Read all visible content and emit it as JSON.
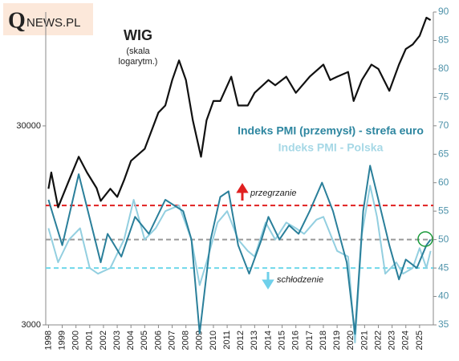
{
  "logo": {
    "mark": "Q",
    "rest": "NEWS.PL"
  },
  "chart_data": {
    "type": "line",
    "wig_note": [
      "(skala",
      "logarytm.)"
    ],
    "xlim": [
      1997.8,
      2026
    ],
    "xticks": [
      1998,
      1999,
      2000,
      2001,
      2002,
      2003,
      2004,
      2005,
      2006,
      2007,
      2008,
      2009,
      2010,
      2011,
      2012,
      2013,
      2014,
      2015,
      2016,
      2017,
      2018,
      2019,
      2020,
      2021,
      2022,
      2023,
      2024,
      2025
    ],
    "ylim": [
      3000,
      112000
    ],
    "yticks": [
      3000,
      30000
    ],
    "ylog": true,
    "y2lim": [
      35,
      90
    ],
    "y2ticks": [
      35,
      40,
      45,
      50,
      55,
      60,
      65,
      70,
      75,
      80,
      85,
      90
    ],
    "series": [
      {
        "name": "WIG",
        "color": "#111111",
        "axis": "y",
        "x": [
          1998.0,
          1998.2,
          1998.7,
          1999.5,
          2000.2,
          2000.8,
          2001.5,
          2001.8,
          2002.5,
          2003.0,
          2003.5,
          2004.0,
          2005.0,
          2006.0,
          2006.5,
          2007.0,
          2007.5,
          2008.0,
          2008.5,
          2009.1,
          2009.5,
          2010.0,
          2010.5,
          2011.3,
          2011.8,
          2012.5,
          2013.0,
          2014.0,
          2014.5,
          2015.3,
          2016.0,
          2017.0,
          2018.0,
          2018.5,
          2019.0,
          2019.8,
          2020.2,
          2020.8,
          2021.5,
          2022.0,
          2022.8,
          2023.5,
          2024.0,
          2024.5,
          2025.0,
          2025.5,
          2025.8
        ],
        "values": [
          14500,
          17500,
          11700,
          16000,
          21000,
          17500,
          14600,
          12600,
          14500,
          13200,
          16000,
          20000,
          23000,
          35000,
          38000,
          51000,
          64000,
          51000,
          32000,
          21000,
          32000,
          40000,
          40000,
          53000,
          38000,
          38000,
          44000,
          51000,
          48000,
          53000,
          44000,
          53000,
          61000,
          51000,
          53000,
          56000,
          40000,
          51000,
          61000,
          58000,
          45000,
          61000,
          73000,
          77000,
          85000,
          105000,
          102000
        ]
      },
      {
        "name": "Indeks PMI (przemysł) - strefa euro",
        "color": "#2a7f9a",
        "axis": "y2",
        "x": [
          1998.0,
          1999.0,
          2000.2,
          2001.8,
          2002.3,
          2003.3,
          2004.3,
          2005.3,
          2006.5,
          2007.8,
          2008.4,
          2009.0,
          2009.8,
          2010.5,
          2011.1,
          2011.8,
          2012.6,
          2013.5,
          2014.0,
          2014.8,
          2015.5,
          2016.2,
          2017.0,
          2017.9,
          2018.7,
          2019.7,
          2020.3,
          2020.9,
          2021.4,
          2021.9,
          2022.8,
          2023.5,
          2024.0,
          2024.8,
          2025.5,
          2025.8
        ],
        "values": [
          57,
          49,
          61.5,
          46,
          51,
          47,
          54,
          51,
          57,
          55,
          50,
          33.5,
          50,
          57.5,
          58.5,
          49,
          44,
          50,
          54,
          50,
          52.5,
          51,
          55,
          60,
          55,
          46,
          33.4,
          55,
          63,
          58,
          49,
          43,
          46.5,
          45,
          49,
          50
        ]
      },
      {
        "name": "Indeks PMI - Polska",
        "color": "#93cfe0",
        "axis": "y2",
        "x": [
          1998.0,
          1998.7,
          1999.5,
          2000.3,
          2001.0,
          2001.6,
          2002.5,
          2003.5,
          2004.2,
          2005.0,
          2005.8,
          2006.5,
          2007.5,
          2008.4,
          2009.0,
          2009.5,
          2010.3,
          2011.0,
          2011.8,
          2012.5,
          2013.0,
          2013.8,
          2014.5,
          2015.3,
          2016.0,
          2016.6,
          2017.5,
          2018.0,
          2019.0,
          2019.8,
          2020.3,
          2020.8,
          2021.4,
          2021.9,
          2022.5,
          2023.3,
          2023.8,
          2024.5,
          2025.0,
          2025.5,
          2025.8
        ],
        "values": [
          52,
          46,
          50,
          52,
          45,
          44,
          45,
          50,
          57,
          50,
          52,
          55,
          56,
          50,
          42,
          46,
          53,
          55,
          50,
          48,
          47,
          53,
          50,
          53,
          52,
          51,
          53.5,
          54,
          48,
          47,
          31.9,
          50.8,
          59.5,
          54,
          44,
          46,
          44,
          45,
          48.5,
          45,
          48
        ]
      }
    ],
    "reference_lines": [
      {
        "value": 56,
        "color": "#e02020",
        "axis": "y2"
      },
      {
        "value": 50,
        "color": "#999999",
        "axis": "y2"
      },
      {
        "value": 45,
        "color": "#6fd8ea",
        "axis": "y2"
      }
    ],
    "annotations": [
      "przegrzanie",
      "schłodzenie"
    ]
  }
}
